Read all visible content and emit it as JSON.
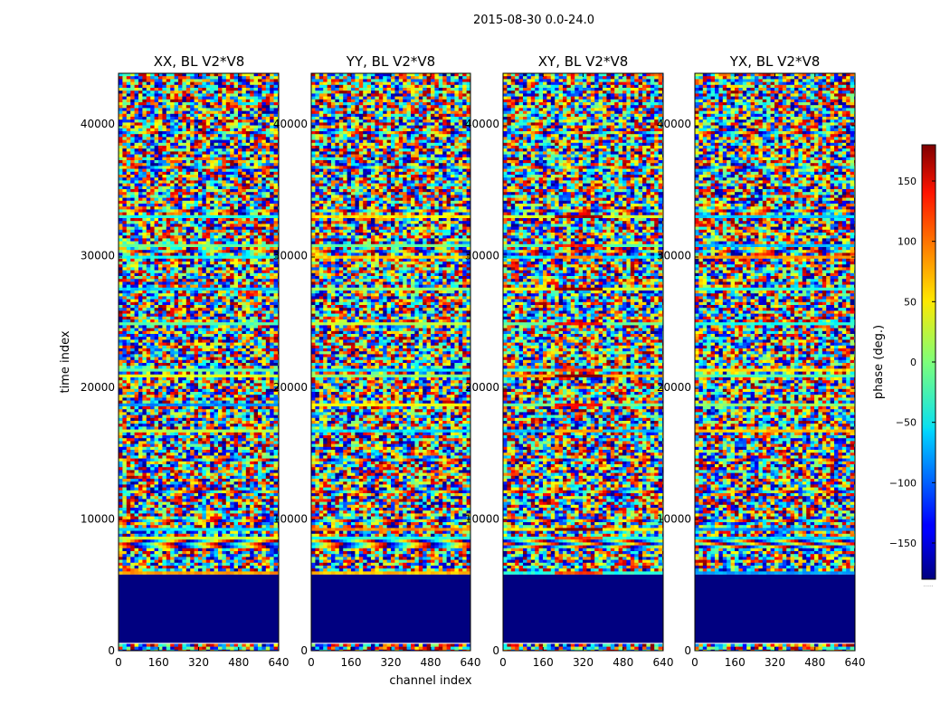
{
  "chart_data": {
    "type": "heatmap",
    "suptitle": "2015-08-30 0.0-24.0",
    "xlabel": "channel index",
    "ylabel": "time index",
    "xlim": [
      0,
      640
    ],
    "ylim": [
      0,
      44000
    ],
    "x_ticks": [
      0,
      160,
      320,
      480,
      640
    ],
    "y_ticks": [
      0,
      10000,
      20000,
      30000,
      40000
    ],
    "panels": [
      {
        "title": "XX, BL V2*V8"
      },
      {
        "title": "YY, BL V2*V8"
      },
      {
        "title": "XY, BL V2*V8"
      },
      {
        "title": "YX, BL V2*V8"
      }
    ],
    "colorbar": {
      "label": "phase (deg.)",
      "range": [
        -180,
        180
      ],
      "ticks": [
        -150,
        -100,
        -50,
        0,
        50,
        100,
        150
      ],
      "tick_labels": [
        "−150",
        "−100",
        "−50",
        "0",
        "50",
        "100",
        "150"
      ],
      "colormap": "jet",
      "footer": "......"
    },
    "flagged_time_range": [
      600,
      5800
    ],
    "flagged_value_deg": -180
  }
}
